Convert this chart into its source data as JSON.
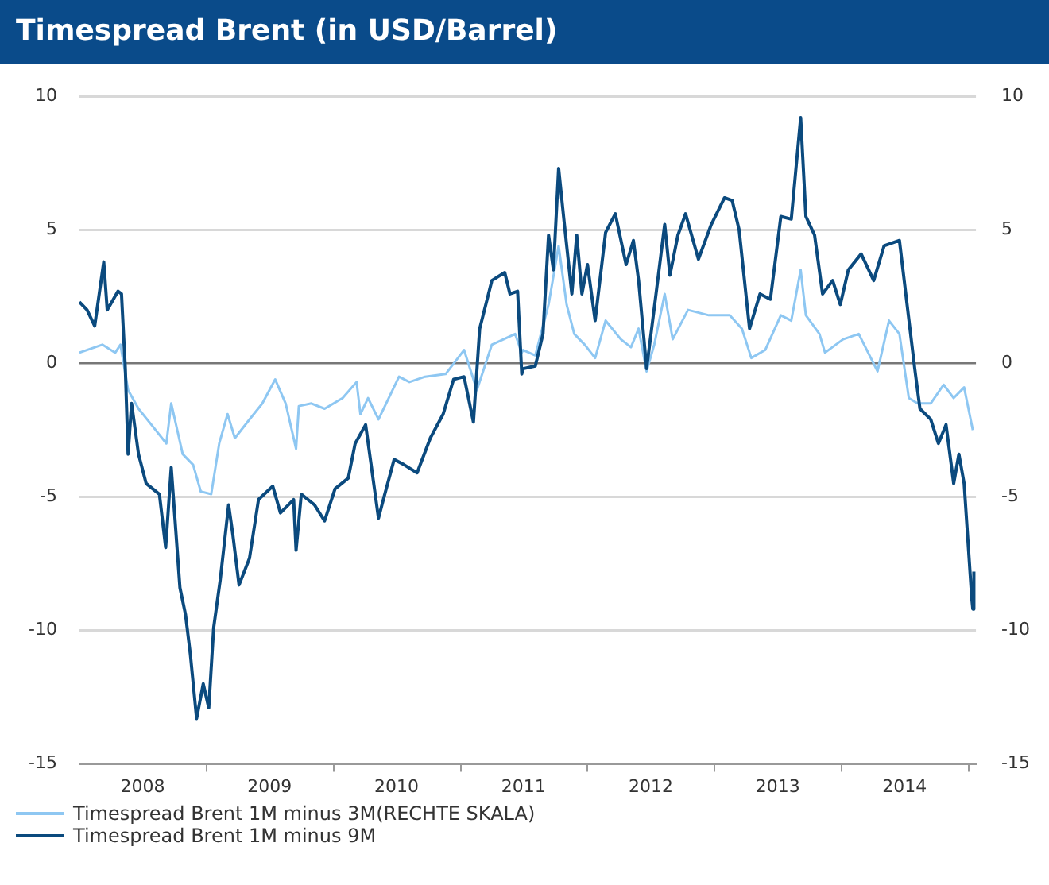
{
  "chart_data": {
    "type": "line",
    "title": "Timespread Brent (in USD/Barrel)",
    "xlim": [
      "2008-01-01",
      "2015-01-22"
    ],
    "xticks": [
      {
        "value": "2008-07-01",
        "label": "2008"
      },
      {
        "value": "2009-07-01",
        "label": "2009"
      },
      {
        "value": "2010-07-01",
        "label": "2010"
      },
      {
        "value": "2011-07-01",
        "label": "2011"
      },
      {
        "value": "2012-07-01",
        "label": "2012"
      },
      {
        "value": "2013-07-01",
        "label": "2013"
      },
      {
        "value": "2014-07-01",
        "label": "2014"
      },
      {
        "value": "2009-01-01",
        "label": null
      },
      {
        "value": "2010-01-01",
        "label": null
      },
      {
        "value": "2011-01-01",
        "label": null
      },
      {
        "value": "2012-01-01",
        "label": null
      },
      {
        "value": "2013-01-01",
        "label": null
      },
      {
        "value": "2014-01-01",
        "label": null
      },
      {
        "value": "2015-01-01",
        "label": null
      }
    ],
    "ylim": [
      -15,
      10
    ],
    "yticks": [
      -15,
      -10,
      -5,
      0,
      5,
      10
    ],
    "y2lim": [
      -15,
      10
    ],
    "y2ticks": [
      -15,
      -10,
      -5,
      0,
      5,
      10
    ],
    "grid": "y",
    "legend": "bottom left",
    "marker": "none",
    "line_style": "solid",
    "series": [
      {
        "name": "Timespread Brent 1M minus 3M(RECHTE SKALA)",
        "color": "#8ec7f2",
        "axis": "y2",
        "x": [
          "2008-01-01",
          "2008-03-07",
          "2008-04-13",
          "2008-04-28",
          "2008-05-20",
          "2008-06-19",
          "2008-07-26",
          "2008-09-07",
          "2008-09-21",
          "2008-10-24",
          "2008-11-23",
          "2008-12-15",
          "2009-01-14",
          "2009-02-06",
          "2009-03-02",
          "2009-03-23",
          "2009-05-04",
          "2009-06-10",
          "2009-07-17",
          "2009-08-16",
          "2009-09-15",
          "2009-09-23",
          "2009-10-29",
          "2009-12-06",
          "2010-01-27",
          "2010-03-08",
          "2010-03-19",
          "2010-04-10",
          "2010-05-10",
          "2010-07-08",
          "2010-08-07",
          "2010-09-21",
          "2010-11-19",
          "2011-01-11",
          "2011-02-17",
          "2011-04-01",
          "2011-06-07",
          "2011-06-26",
          "2011-06-30",
          "2011-08-04",
          "2011-09-11",
          "2011-10-10",
          "2011-11-02",
          "2011-11-24",
          "2011-12-24",
          "2012-01-23",
          "2012-02-22",
          "2012-04-06",
          "2012-05-05",
          "2012-05-27",
          "2012-06-19",
          "2012-07-11",
          "2012-08-10",
          "2012-09-02",
          "2012-10-16",
          "2012-12-15",
          "2013-02-13",
          "2013-03-20",
          "2013-04-16",
          "2013-05-26",
          "2013-07-10",
          "2013-08-09",
          "2013-09-05",
          "2013-09-20",
          "2013-10-29",
          "2013-11-14",
          "2014-01-05",
          "2014-02-19",
          "2014-04-14",
          "2014-05-17",
          "2014-06-16",
          "2014-07-13",
          "2014-08-07",
          "2014-09-14",
          "2014-10-21",
          "2014-11-19",
          "2014-12-19",
          "2015-01-13"
        ],
        "values": [
          0.4,
          0.7,
          0.4,
          0.7,
          -1.0,
          -1.7,
          -2.3,
          -3.0,
          -1.5,
          -3.4,
          -3.8,
          -4.8,
          -4.9,
          -3.0,
          -1.9,
          -2.8,
          -2.1,
          -1.5,
          -0.6,
          -1.5,
          -3.2,
          -1.6,
          -1.5,
          -1.7,
          -1.3,
          -0.7,
          -1.9,
          -1.3,
          -2.1,
          -0.5,
          -0.7,
          -0.5,
          -0.4,
          0.5,
          -1.0,
          0.7,
          1.1,
          0.4,
          0.5,
          0.3,
          2.2,
          4.4,
          2.2,
          1.1,
          0.7,
          0.2,
          1.6,
          0.9,
          0.6,
          1.3,
          -0.3,
          0.7,
          2.6,
          0.9,
          2.0,
          1.8,
          1.8,
          1.3,
          0.2,
          0.5,
          1.8,
          1.6,
          3.5,
          1.8,
          1.1,
          0.4,
          0.9,
          1.1,
          -0.3,
          1.6,
          1.1,
          -1.3,
          -1.5,
          -1.5,
          -0.8,
          -1.3,
          -0.9,
          -2.5
        ]
      },
      {
        "name": "Timespread Brent 1M minus 9M",
        "color": "#0b4a7e",
        "axis": "y",
        "x": [
          "2008-01-01",
          "2008-01-23",
          "2008-02-14",
          "2008-03-11",
          "2008-03-21",
          "2008-04-21",
          "2008-05-01",
          "2008-05-12",
          "2008-05-20",
          "2008-05-30",
          "2008-06-19",
          "2008-07-11",
          "2008-08-18",
          "2008-09-05",
          "2008-09-21",
          "2008-10-16",
          "2008-11-01",
          "2008-11-15",
          "2008-12-03",
          "2008-12-22",
          "2009-01-07",
          "2009-01-21",
          "2009-02-09",
          "2009-03-05",
          "2009-03-17",
          "2009-04-04",
          "2009-05-04",
          "2009-05-30",
          "2009-07-10",
          "2009-08-01",
          "2009-09-08",
          "2009-09-15",
          "2009-09-30",
          "2009-11-07",
          "2009-12-06",
          "2010-01-05",
          "2010-02-12",
          "2010-03-04",
          "2010-04-03",
          "2010-05-10",
          "2010-05-24",
          "2010-06-24",
          "2010-07-23",
          "2010-08-29",
          "2010-10-06",
          "2010-11-12",
          "2010-12-12",
          "2011-01-11",
          "2011-02-07",
          "2011-02-25",
          "2011-04-01",
          "2011-05-08",
          "2011-05-23",
          "2011-06-14",
          "2011-06-26",
          "2011-06-30",
          "2011-08-04",
          "2011-08-26",
          "2011-09-11",
          "2011-09-25",
          "2011-10-10",
          "2011-10-25",
          "2011-11-17",
          "2011-12-01",
          "2011-12-16",
          "2012-01-01",
          "2012-01-23",
          "2012-02-22",
          "2012-03-21",
          "2012-04-21",
          "2012-05-12",
          "2012-05-27",
          "2012-06-19",
          "2012-07-18",
          "2012-08-10",
          "2012-08-25",
          "2012-09-17",
          "2012-10-09",
          "2012-11-15",
          "2012-12-22",
          "2013-01-29",
          "2013-02-20",
          "2013-03-12",
          "2013-04-11",
          "2013-05-11",
          "2013-06-10",
          "2013-07-10",
          "2013-08-09",
          "2013-09-05",
          "2013-09-20",
          "2013-10-15",
          "2013-11-07",
          "2013-12-06",
          "2013-12-28",
          "2014-01-20",
          "2014-02-26",
          "2014-04-03",
          "2014-05-03",
          "2014-06-16",
          "2014-07-08",
          "2014-07-30",
          "2014-08-14",
          "2014-09-14",
          "2014-10-06",
          "2014-10-28",
          "2014-11-19",
          "2014-12-04",
          "2014-12-19",
          "2015-01-10",
          "2015-01-13",
          "2015-01-16"
        ],
        "values": [
          2.3,
          2.0,
          1.4,
          3.8,
          2.0,
          2.7,
          2.6,
          -0.2,
          -3.4,
          -1.5,
          -3.4,
          -4.5,
          -4.9,
          -6.9,
          -3.9,
          -8.4,
          -9.4,
          -10.9,
          -13.3,
          -12.0,
          -12.9,
          -9.9,
          -8.1,
          -5.3,
          -6.4,
          -8.3,
          -7.3,
          -5.1,
          -4.6,
          -5.6,
          -5.1,
          -7.0,
          -4.9,
          -5.3,
          -5.9,
          -4.7,
          -4.3,
          -3.0,
          -2.3,
          -5.8,
          -5.1,
          -3.6,
          -3.8,
          -4.1,
          -2.8,
          -1.9,
          -0.6,
          -0.5,
          -2.2,
          1.3,
          3.1,
          3.4,
          2.6,
          2.7,
          -0.4,
          -0.2,
          -0.1,
          1.1,
          4.8,
          3.5,
          7.3,
          5.4,
          2.6,
          4.8,
          2.6,
          3.7,
          1.6,
          4.9,
          5.6,
          3.7,
          4.6,
          3.1,
          -0.2,
          2.8,
          5.2,
          3.3,
          4.8,
          5.6,
          3.9,
          5.2,
          6.2,
          6.1,
          5.0,
          1.3,
          2.6,
          2.4,
          5.5,
          5.4,
          9.2,
          5.5,
          4.8,
          2.6,
          3.1,
          2.2,
          3.5,
          4.1,
          3.1,
          4.4,
          4.6,
          2.2,
          -0.2,
          -1.7,
          -2.1,
          -3.0,
          -2.3,
          -4.5,
          -3.4,
          -4.5,
          -8.8,
          -9.2,
          -7.8
        ]
      }
    ]
  }
}
